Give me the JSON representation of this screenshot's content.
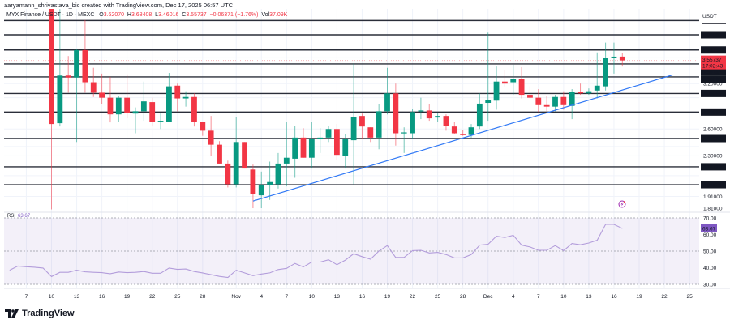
{
  "header": {
    "credit": "aaryamann_shrivastava_bic created with TradingView.com, Dec 17, 2025 06:57 UTC",
    "symbol": "MYX Finance / USDT · 1D · MEXC",
    "ohlc": {
      "o_label": "O",
      "o": "3.62070",
      "h_label": "H",
      "h": "3.68408",
      "l_label": "L",
      "l": "3.46016",
      "c_label": "C",
      "c": "3.55737",
      "change": "−0.06371 (−1.76%)",
      "vol_label": "Vol",
      "vol": "37.09K"
    }
  },
  "price_axis": {
    "currency": "USDT",
    "ticks": [
      3.2,
      2.6,
      2.3,
      1.91,
      1.81
    ],
    "tick_labels": [
      "3.20000",
      "2.60000",
      "2.30000",
      "1.91000",
      "1.81000"
    ],
    "current_price": {
      "price": 3.55737,
      "label": "3.55737",
      "countdown": "17:02:43"
    }
  },
  "levels": [
    {
      "price": 4.27,
      "label": ""
    },
    {
      "price": 4.0,
      "label": "4.00000"
    },
    {
      "price": 3.73152,
      "label": "3.73152"
    },
    {
      "price": 3.50184,
      "label": "3.50184"
    },
    {
      "price": 3.3,
      "label": "3.30000"
    },
    {
      "price": 3.05896,
      "label": "3.05896"
    },
    {
      "price": 2.80961,
      "label": "2.80961"
    },
    {
      "price": 2.48932,
      "label": "2.48932"
    },
    {
      "price": 2.18729,
      "label": "2.18729"
    },
    {
      "price": 2.01526,
      "label": "2.01526"
    }
  ],
  "trendline": {
    "from": {
      "date": "2025-11-03",
      "price": 1.87
    },
    "to": {
      "date": "2025-12-23",
      "price": 3.33
    },
    "color": "#3179f5"
  },
  "colors": {
    "up": "#089981",
    "down": "#f23645",
    "rsi": "#7e57c2",
    "level": "#131722"
  },
  "chart_data": {
    "type": "candlestick",
    "x_labels": [
      {
        "date": "2025-10-07",
        "label": "7"
      },
      {
        "date": "2025-10-10",
        "label": "10"
      },
      {
        "date": "2025-10-13",
        "label": "13"
      },
      {
        "date": "2025-10-16",
        "label": "16"
      },
      {
        "date": "2025-10-19",
        "label": "19"
      },
      {
        "date": "2025-10-22",
        "label": "22"
      },
      {
        "date": "2025-10-25",
        "label": "25"
      },
      {
        "date": "2025-10-28",
        "label": "28"
      },
      {
        "date": "2025-11-01",
        "label": "Nov"
      },
      {
        "date": "2025-11-04",
        "label": "4"
      },
      {
        "date": "2025-11-07",
        "label": "7"
      },
      {
        "date": "2025-11-10",
        "label": "10"
      },
      {
        "date": "2025-11-13",
        "label": "13"
      },
      {
        "date": "2025-11-16",
        "label": "16"
      },
      {
        "date": "2025-11-19",
        "label": "19"
      },
      {
        "date": "2025-11-22",
        "label": "22"
      },
      {
        "date": "2025-11-25",
        "label": "25"
      },
      {
        "date": "2025-11-28",
        "label": "28"
      },
      {
        "date": "2025-12-01",
        "label": "Dec"
      },
      {
        "date": "2025-12-04",
        "label": "4"
      },
      {
        "date": "2025-12-07",
        "label": "7"
      },
      {
        "date": "2025-12-10",
        "label": "10"
      },
      {
        "date": "2025-12-13",
        "label": "13"
      },
      {
        "date": "2025-12-16",
        "label": "16"
      },
      {
        "date": "2025-12-19",
        "label": "19"
      },
      {
        "date": "2025-12-22",
        "label": "22"
      },
      {
        "date": "2025-12-25",
        "label": "25"
      }
    ],
    "y_scale": "log",
    "candles_columns": [
      "date",
      "open",
      "high",
      "low",
      "close"
    ],
    "candles": [
      [
        "2025-10-10",
        4.6,
        5.0,
        1.8,
        2.66
      ],
      [
        "2025-10-11",
        2.67,
        4.5,
        2.63,
        3.32
      ],
      [
        "2025-10-12",
        3.32,
        3.63,
        3.07,
        3.29
      ],
      [
        "2025-10-13",
        3.29,
        3.75,
        2.45,
        3.73
      ],
      [
        "2025-10-14",
        3.73,
        4.28,
        3.07,
        3.22
      ],
      [
        "2025-10-15",
        3.22,
        3.44,
        3.01,
        3.07
      ],
      [
        "2025-10-16",
        3.07,
        3.35,
        2.91,
        3.0
      ],
      [
        "2025-10-17",
        3.0,
        3.3,
        2.68,
        2.78
      ],
      [
        "2025-10-18",
        2.78,
        3.02,
        2.69,
        3.0
      ],
      [
        "2025-10-19",
        3.0,
        3.34,
        2.73,
        2.8
      ],
      [
        "2025-10-20",
        2.79,
        2.87,
        2.55,
        2.82
      ],
      [
        "2025-10-21",
        2.82,
        3.23,
        2.7,
        2.95
      ],
      [
        "2025-10-22",
        2.94,
        3.0,
        2.63,
        2.69
      ],
      [
        "2025-10-23",
        2.7,
        2.8,
        2.6,
        2.7
      ],
      [
        "2025-10-24",
        2.69,
        3.36,
        2.69,
        3.16
      ],
      [
        "2025-10-25",
        3.17,
        3.2,
        2.82,
        2.99
      ],
      [
        "2025-10-26",
        2.99,
        3.09,
        2.88,
        3.01
      ],
      [
        "2025-10-27",
        3.01,
        3.06,
        2.63,
        2.69
      ],
      [
        "2025-10-28",
        2.69,
        2.69,
        2.52,
        2.58
      ],
      [
        "2025-10-29",
        2.58,
        2.76,
        2.3,
        2.42
      ],
      [
        "2025-10-30",
        2.42,
        2.46,
        2.22,
        2.22
      ],
      [
        "2025-10-31",
        2.22,
        2.25,
        1.99,
        2.02
      ],
      [
        "2025-11-01",
        2.02,
        2.75,
        1.99,
        2.45
      ],
      [
        "2025-11-02",
        2.45,
        2.45,
        2.17,
        2.17
      ],
      [
        "2025-11-03",
        2.16,
        2.21,
        1.81,
        1.93
      ],
      [
        "2025-11-04",
        1.92,
        2.14,
        1.81,
        2.01
      ],
      [
        "2025-11-05",
        2.01,
        2.24,
        1.88,
        2.04
      ],
      [
        "2025-11-06",
        2.02,
        2.33,
        1.98,
        2.22
      ],
      [
        "2025-11-07",
        2.22,
        2.69,
        2.0,
        2.28
      ],
      [
        "2025-11-08",
        2.27,
        2.64,
        2.08,
        2.5
      ],
      [
        "2025-11-09",
        2.5,
        2.61,
        2.28,
        2.28
      ],
      [
        "2025-11-10",
        2.28,
        2.69,
        2.17,
        2.48
      ],
      [
        "2025-11-11",
        2.48,
        2.61,
        2.33,
        2.5
      ],
      [
        "2025-11-12",
        2.5,
        2.64,
        2.45,
        2.6
      ],
      [
        "2025-11-13",
        2.6,
        2.66,
        2.26,
        2.31
      ],
      [
        "2025-11-14",
        2.3,
        2.54,
        2.17,
        2.48
      ],
      [
        "2025-11-15",
        2.47,
        3.51,
        2.02,
        2.75
      ],
      [
        "2025-11-16",
        2.76,
        2.79,
        2.49,
        2.63
      ],
      [
        "2025-11-17",
        2.62,
        2.62,
        2.45,
        2.5
      ],
      [
        "2025-11-18",
        2.5,
        2.91,
        2.37,
        2.82
      ],
      [
        "2025-11-19",
        2.82,
        3.44,
        2.78,
        3.06
      ],
      [
        "2025-11-20",
        3.06,
        3.2,
        2.41,
        2.55
      ],
      [
        "2025-11-21",
        2.55,
        2.62,
        2.33,
        2.56
      ],
      [
        "2025-11-22",
        2.55,
        2.85,
        2.49,
        2.81
      ],
      [
        "2025-11-23",
        2.82,
        3.0,
        2.72,
        2.83
      ],
      [
        "2025-11-24",
        2.83,
        2.91,
        2.7,
        2.73
      ],
      [
        "2025-11-25",
        2.74,
        2.8,
        2.69,
        2.76
      ],
      [
        "2025-11-26",
        2.76,
        2.78,
        2.58,
        2.64
      ],
      [
        "2025-11-27",
        2.63,
        2.69,
        2.54,
        2.55
      ],
      [
        "2025-11-28",
        2.54,
        2.59,
        2.52,
        2.53
      ],
      [
        "2025-11-29",
        2.53,
        2.66,
        2.5,
        2.62
      ],
      [
        "2025-11-30",
        2.63,
        3.06,
        2.6,
        2.92
      ],
      [
        "2025-12-01",
        2.93,
        4.04,
        2.7,
        2.97
      ],
      [
        "2025-12-02",
        2.96,
        3.46,
        2.84,
        3.23
      ],
      [
        "2025-12-03",
        3.23,
        3.41,
        3.16,
        3.2
      ],
      [
        "2025-12-04",
        3.22,
        3.49,
        3.04,
        3.27
      ],
      [
        "2025-12-05",
        3.27,
        3.45,
        2.99,
        3.04
      ],
      [
        "2025-12-06",
        3.04,
        3.16,
        2.99,
        3.0
      ],
      [
        "2025-12-07",
        3.0,
        3.12,
        2.81,
        2.9
      ],
      [
        "2025-12-08",
        2.9,
        3.02,
        2.82,
        2.88
      ],
      [
        "2025-12-09",
        2.88,
        3.04,
        2.82,
        3.01
      ],
      [
        "2025-12-10",
        3.01,
        3.09,
        2.84,
        2.9
      ],
      [
        "2025-12-11",
        2.89,
        3.12,
        2.72,
        3.08
      ],
      [
        "2025-12-12",
        3.08,
        3.2,
        3.04,
        3.06
      ],
      [
        "2025-12-13",
        3.06,
        3.13,
        3.04,
        3.09
      ],
      [
        "2025-12-14",
        3.1,
        3.69,
        2.99,
        3.17
      ],
      [
        "2025-12-15",
        3.16,
        3.86,
        3.1,
        3.6
      ],
      [
        "2025-12-16",
        3.61,
        3.86,
        3.35,
        3.62
      ],
      [
        "2025-12-17",
        3.6207,
        3.68408,
        3.46016,
        3.55737
      ]
    ],
    "rsi": {
      "label": "RSI",
      "value": "63.67",
      "ylim": [
        30,
        70
      ],
      "ticks": [
        "70.00",
        "60.00",
        "50.00",
        "40.00",
        "30.00"
      ],
      "start_date": "2025-10-05",
      "values": [
        38.5,
        41,
        40.6,
        40.3,
        39.8,
        34.7,
        37.2,
        37.2,
        38.5,
        37.5,
        37.2,
        37,
        36.4,
        37.4,
        37,
        37.2,
        37.7,
        36.7,
        36.7,
        39.8,
        39,
        39.2,
        37.7,
        36.9,
        35.8,
        34.8,
        34.1,
        38.5,
        36.9,
        35.2,
        36.2,
        36.9,
        38.9,
        39.6,
        42.6,
        40.5,
        43.4,
        43.4,
        44.8,
        41.8,
        44.6,
        48.4,
        46.7,
        45.1,
        50,
        53.3,
        46.2,
        46.2,
        50.3,
        50.5,
        48.9,
        49.2,
        47.9,
        45.9,
        45.9,
        47.9,
        53.6,
        54.1,
        59,
        58.2,
        59.5,
        53.6,
        52.5,
        50.5,
        50.5,
        53.3,
        50.3,
        54.6,
        53.8,
        54.9,
        56.6,
        66.1,
        66.1,
        63.67
      ]
    }
  },
  "footer": {
    "brand": "TradingView"
  }
}
